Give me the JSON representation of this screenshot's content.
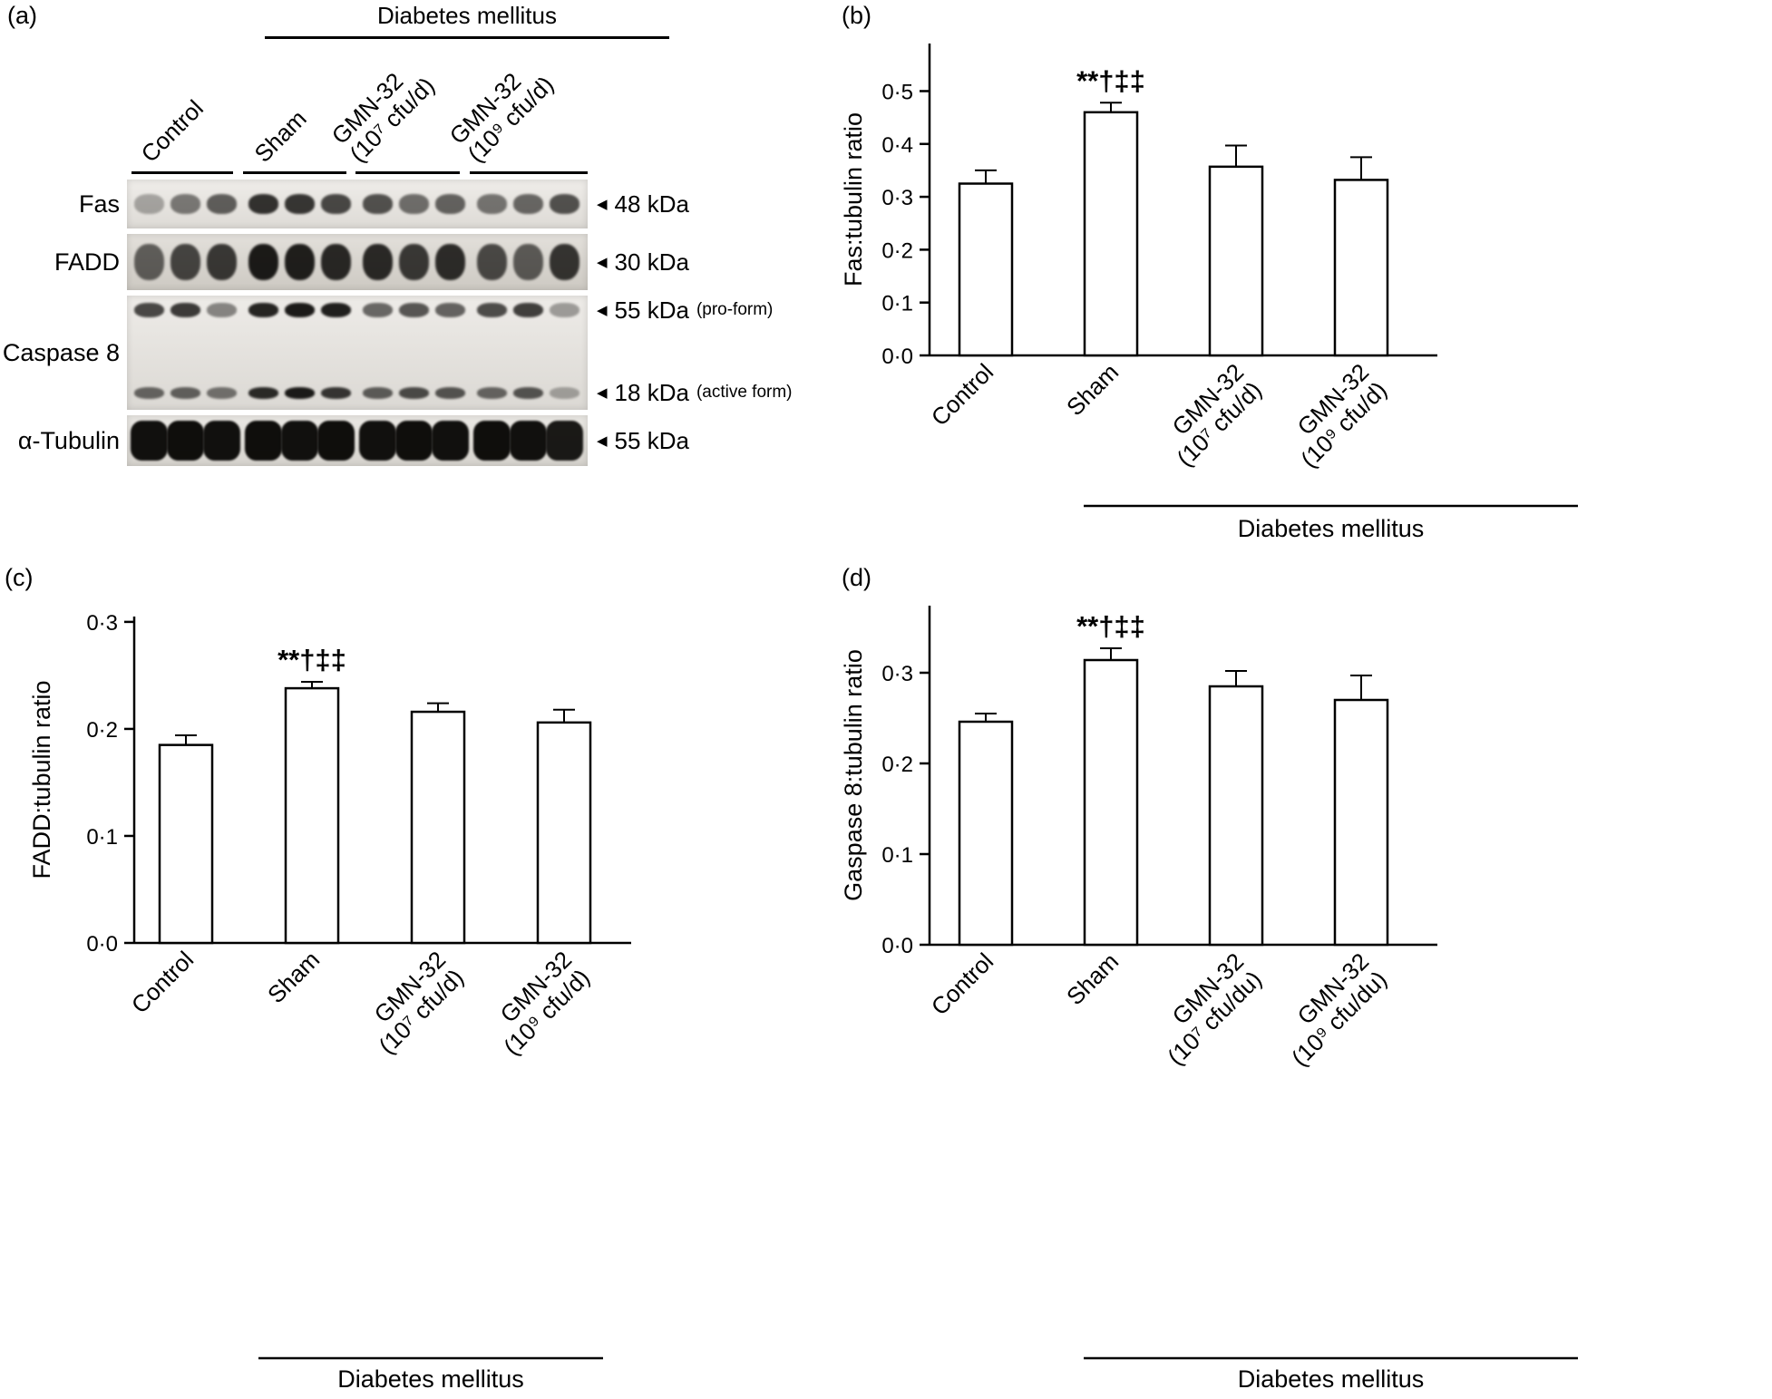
{
  "figure": {
    "panel_a": {
      "label": "(a)",
      "header": "Diabetes mellitus",
      "group_labels": [
        "Control",
        "Sham",
        "GMN-32\n(10⁷ cfu/d)",
        "GMN-32\n(10⁹ cfu/d)"
      ],
      "rows": [
        {
          "label": "Fas",
          "markers": [
            {
              "arrow": "◀",
              "kda": "48 kDa",
              "note": ""
            }
          ],
          "band_rows": [
            {
              "intensities": [
                0.3,
                0.5,
                0.62,
                0.82,
                0.8,
                0.72,
                0.68,
                0.55,
                0.6,
                0.52,
                0.58,
                0.68
              ]
            }
          ]
        },
        {
          "label": "FADD",
          "markers": [
            {
              "arrow": "◀",
              "kda": "30 kDa",
              "note": ""
            }
          ],
          "band_rows": [
            {
              "intensities": [
                0.6,
                0.72,
                0.78,
                0.92,
                0.9,
                0.86,
                0.85,
                0.78,
                0.84,
                0.7,
                0.62,
                0.8
              ]
            }
          ]
        },
        {
          "label": "Caspase 8",
          "markers": [
            {
              "arrow": "◀",
              "kda": "55 kDa",
              "note": "(pro-form)"
            },
            {
              "arrow": "◀",
              "kda": "18 kDa",
              "note": "(active form)"
            }
          ],
          "band_rows": [
            {
              "intensities": [
                0.72,
                0.78,
                0.45,
                0.88,
                0.92,
                0.9,
                0.58,
                0.66,
                0.6,
                0.7,
                0.76,
                0.35
              ]
            },
            {
              "intensities": [
                0.58,
                0.6,
                0.52,
                0.85,
                0.92,
                0.8,
                0.62,
                0.7,
                0.66,
                0.58,
                0.66,
                0.3
              ]
            }
          ]
        },
        {
          "label": "α-Tubulin",
          "markers": [
            {
              "arrow": "◀",
              "kda": "55 kDa",
              "note": ""
            }
          ],
          "band_rows": [
            {
              "intensities": [
                0.97,
                0.98,
                0.97,
                0.98,
                0.97,
                0.98,
                0.97,
                0.98,
                0.97,
                0.98,
                0.97,
                0.93
              ]
            }
          ]
        }
      ]
    }
  },
  "chart_data": [
    {
      "id": "b",
      "panel_label": "(b)",
      "type": "bar",
      "title": "",
      "ylabel": "Fas:tubulin ratio",
      "xlabel": "",
      "categories": [
        "Control",
        "Sham",
        "GMN-32\n(10⁷ cfu/d)",
        "GMN-32\n(10⁹ cfu/d)"
      ],
      "values": [
        0.325,
        0.46,
        0.357,
        0.332
      ],
      "errors": [
        0.025,
        0.018,
        0.04,
        0.043
      ],
      "ylim": [
        0,
        0.59
      ],
      "yticks": [
        0.0,
        0.1,
        0.2,
        0.3,
        0.4,
        0.5
      ],
      "ytick_labels": [
        "0·0",
        "0·1",
        "0·2",
        "0·3",
        "0·4",
        "0·5"
      ],
      "grid": false,
      "bar_fill": "#ffffff",
      "bar_stroke": "#000000",
      "annotations": [
        {
          "category_index": 1,
          "text": "**†‡‡"
        }
      ],
      "bracket": {
        "label": "Diabetes mellitus",
        "from_index": 1,
        "to_index": 3
      }
    },
    {
      "id": "c",
      "panel_label": "(c)",
      "type": "bar",
      "title": "",
      "ylabel": "FADD:tubulin ratio",
      "xlabel": "",
      "categories": [
        "Control",
        "Sham",
        "GMN-32\n(10⁷ cfu/d)",
        "GMN-32\n(10⁹ cfu/d)"
      ],
      "values": [
        0.185,
        0.238,
        0.216,
        0.206
      ],
      "errors": [
        0.009,
        0.006,
        0.008,
        0.012
      ],
      "ylim": [
        0,
        0.305
      ],
      "yticks": [
        0.0,
        0.1,
        0.2,
        0.3
      ],
      "ytick_labels": [
        "0·0",
        "0·1",
        "0·2",
        "0·3"
      ],
      "grid": false,
      "bar_fill": "#ffffff",
      "bar_stroke": "#000000",
      "annotations": [
        {
          "category_index": 1,
          "text": "**†‡‡"
        }
      ],
      "bracket": {
        "label": "Diabetes mellitus",
        "from_index": 1,
        "to_index": 3
      }
    },
    {
      "id": "d",
      "panel_label": "(d)",
      "type": "bar",
      "title": "",
      "ylabel": "Gaspase 8:tubulin ratio",
      "xlabel": "",
      "categories": [
        "Control",
        "Sham",
        "GMN-32\n(10⁷ cfu/du)",
        "GMN-32\n(10⁹ cfu/du)"
      ],
      "values": [
        0.246,
        0.314,
        0.285,
        0.27
      ],
      "errors": [
        0.009,
        0.013,
        0.017,
        0.027
      ],
      "ylim": [
        0,
        0.374
      ],
      "yticks": [
        0.0,
        0.1,
        0.2,
        0.3
      ],
      "ytick_labels": [
        "0·0",
        "0·1",
        "0·2",
        "0·3"
      ],
      "grid": false,
      "bar_fill": "#ffffff",
      "bar_stroke": "#000000",
      "annotations": [
        {
          "category_index": 1,
          "text": "**†‡‡"
        }
      ],
      "bracket": {
        "label": "Diabetes mellitus",
        "from_index": 1,
        "to_index": 3
      }
    }
  ]
}
